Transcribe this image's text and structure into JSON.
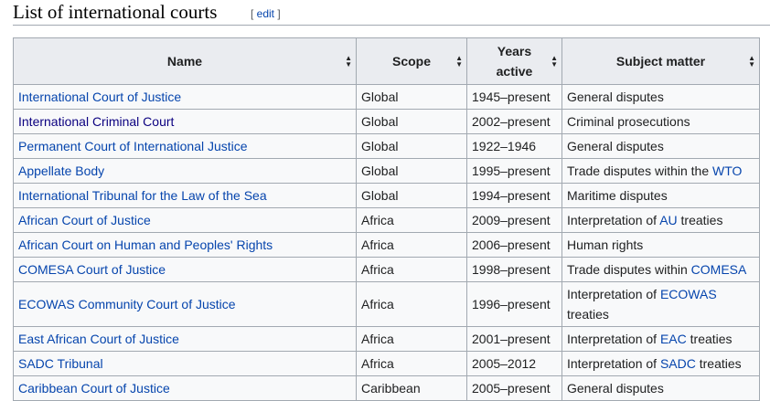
{
  "heading": {
    "title": "List of international courts",
    "edit_open": "[ ",
    "edit_label": "edit",
    "edit_close": " ]"
  },
  "columns": [
    {
      "label": "Name"
    },
    {
      "label": "Scope"
    },
    {
      "label_line1": "Years",
      "label_line2": "active"
    },
    {
      "label": "Subject matter"
    }
  ],
  "rows": [
    {
      "name": "International Court of Justice",
      "scope": "Global",
      "years": "1945–present",
      "subject": [
        {
          "text": "General disputes"
        }
      ]
    },
    {
      "name": "International Criminal Court",
      "visited": true,
      "scope": "Global",
      "years": "2002–present",
      "subject": [
        {
          "text": "Criminal prosecutions"
        }
      ]
    },
    {
      "name": "Permanent Court of International Justice",
      "scope": "Global",
      "years": "1922–1946",
      "subject": [
        {
          "text": "General disputes"
        }
      ]
    },
    {
      "name": "Appellate Body",
      "scope": "Global",
      "years": "1995–present",
      "subject": [
        {
          "text": "Trade disputes within the "
        },
        {
          "text": "WTO",
          "link": true
        }
      ]
    },
    {
      "name": "International Tribunal for the Law of the Sea",
      "scope": "Global",
      "years": "1994–present",
      "subject": [
        {
          "text": "Maritime disputes"
        }
      ]
    },
    {
      "name": "African Court of Justice",
      "scope": "Africa",
      "years": "2009–present",
      "subject": [
        {
          "text": "Interpretation of "
        },
        {
          "text": "AU",
          "link": true
        },
        {
          "text": " treaties"
        }
      ]
    },
    {
      "name": "African Court on Human and Peoples' Rights",
      "scope": "Africa",
      "years": "2006–present",
      "subject": [
        {
          "text": "Human rights"
        }
      ]
    },
    {
      "name": "COMESA Court of Justice",
      "scope": "Africa",
      "years": "1998–present",
      "subject": [
        {
          "text": "Trade disputes within "
        },
        {
          "text": "COMESA",
          "link": true
        }
      ]
    },
    {
      "name": "ECOWAS Community Court of Justice",
      "scope": "Africa",
      "years": "1996–present",
      "tall": true,
      "subject": [
        {
          "text": "Interpretation of "
        },
        {
          "text": "ECOWAS",
          "link": true
        },
        {
          "text": " treaties"
        }
      ]
    },
    {
      "name": "East African Court of Justice",
      "scope": "Africa",
      "years": "2001–present",
      "subject": [
        {
          "text": "Interpretation of "
        },
        {
          "text": "EAC",
          "link": true
        },
        {
          "text": " treaties"
        }
      ]
    },
    {
      "name": "SADC Tribunal",
      "scope": "Africa",
      "years": "2005–2012",
      "subject": [
        {
          "text": "Interpretation of "
        },
        {
          "text": "SADC",
          "link": true
        },
        {
          "text": " treaties"
        }
      ]
    },
    {
      "name": "Caribbean Court of Justice",
      "scope": "Caribbean",
      "years": "2005–present",
      "subject": [
        {
          "text": "General disputes"
        }
      ]
    }
  ]
}
